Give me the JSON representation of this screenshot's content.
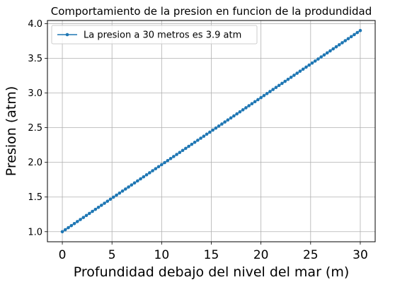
{
  "chart_data": {
    "type": "line",
    "title": "Comportamiento de la presion en funcion de la produndidad",
    "xlabel": "Profundidad debajo del nivel del mar (m)",
    "ylabel": "Presion (atm)",
    "xlim": [
      -1.5,
      31.5
    ],
    "ylim": [
      0.855,
      4.045
    ],
    "xticks": [
      0,
      5,
      10,
      15,
      20,
      25,
      30
    ],
    "xtick_labels": [
      "0",
      "5",
      "10",
      "15",
      "20",
      "25",
      "30"
    ],
    "yticks": [
      1.0,
      1.5,
      2.0,
      2.5,
      3.0,
      3.5,
      4.0
    ],
    "ytick_labels": [
      "1.0",
      "1.5",
      "2.0",
      "2.5",
      "3.0",
      "3.5",
      "4.0"
    ],
    "grid": true,
    "legend_position": "top-left",
    "series": [
      {
        "name": "La presion a 30 metros es 3.9 atm",
        "color": "#1f77b4",
        "marker": "circle",
        "x_start": 0,
        "x_end": 30,
        "point_count": 100,
        "y_start": 1.0,
        "y_end": 3.9
      }
    ]
  }
}
